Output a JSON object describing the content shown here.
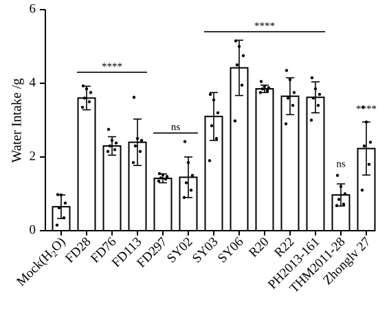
{
  "chart_data": {
    "type": "bar",
    "ylabel": "Water Intake /g",
    "xlabel": "",
    "title": "",
    "ylim": [
      0,
      6
    ],
    "yticks": [
      "0",
      "2",
      "4",
      "6"
    ],
    "categories": [
      "Mock(H2O)",
      "FD28",
      "FD76",
      "FD113",
      "FD297",
      "SY02",
      "SY03",
      "SY06",
      "R20",
      "R22",
      "PH2013-161",
      "THM2011-28",
      "Zhonglv 27"
    ],
    "values": [
      0.65,
      3.6,
      2.3,
      2.4,
      1.42,
      1.45,
      3.1,
      4.42,
      3.85,
      3.65,
      3.62,
      0.97,
      2.23
    ],
    "errors": [
      0.32,
      0.32,
      0.25,
      0.63,
      0.12,
      0.55,
      0.65,
      0.75,
      0.1,
      0.5,
      0.42,
      0.3,
      0.72
    ],
    "points": [
      [
        0.15,
        0.35,
        0.62,
        0.75,
        0.97,
        0.98
      ],
      [
        3.35,
        3.5,
        3.6,
        3.75,
        3.85,
        3.93
      ],
      [
        2.15,
        2.2,
        2.3,
        2.38,
        2.45,
        2.75
      ],
      [
        1.85,
        2.15,
        2.3,
        2.45,
        2.5,
        3.62
      ],
      [
        1.35,
        1.4,
        1.43,
        1.47,
        1.52,
        1.55
      ],
      [
        0.9,
        1.1,
        1.3,
        1.5,
        1.85,
        2.42
      ],
      [
        1.9,
        2.5,
        2.85,
        3.2,
        3.55,
        3.7
      ],
      [
        2.98,
        3.95,
        4.5,
        4.75,
        5.0,
        5.15
      ],
      [
        3.75,
        3.8,
        3.85,
        3.88,
        3.92,
        4.05
      ],
      [
        2.9,
        3.4,
        3.6,
        3.75,
        4.1,
        4.35
      ],
      [
        3.0,
        3.4,
        3.6,
        3.7,
        3.85,
        4.15
      ],
      [
        0.68,
        0.72,
        0.85,
        1.0,
        1.2,
        1.5
      ],
      [
        1.1,
        1.8,
        2.3,
        2.4,
        2.95,
        3.35
      ]
    ],
    "significance": [
      {
        "text": "****",
        "from": 1,
        "to": 3,
        "y": 4.3
      },
      {
        "text": "ns",
        "from": 4,
        "to": 5,
        "y": 2.65
      },
      {
        "text": "****",
        "from": 6,
        "to": 10,
        "y": 5.4
      },
      {
        "text": "ns",
        "at": 11,
        "y": 1.65
      },
      {
        "text": "****",
        "at": 12,
        "y": 3.15
      }
    ]
  }
}
